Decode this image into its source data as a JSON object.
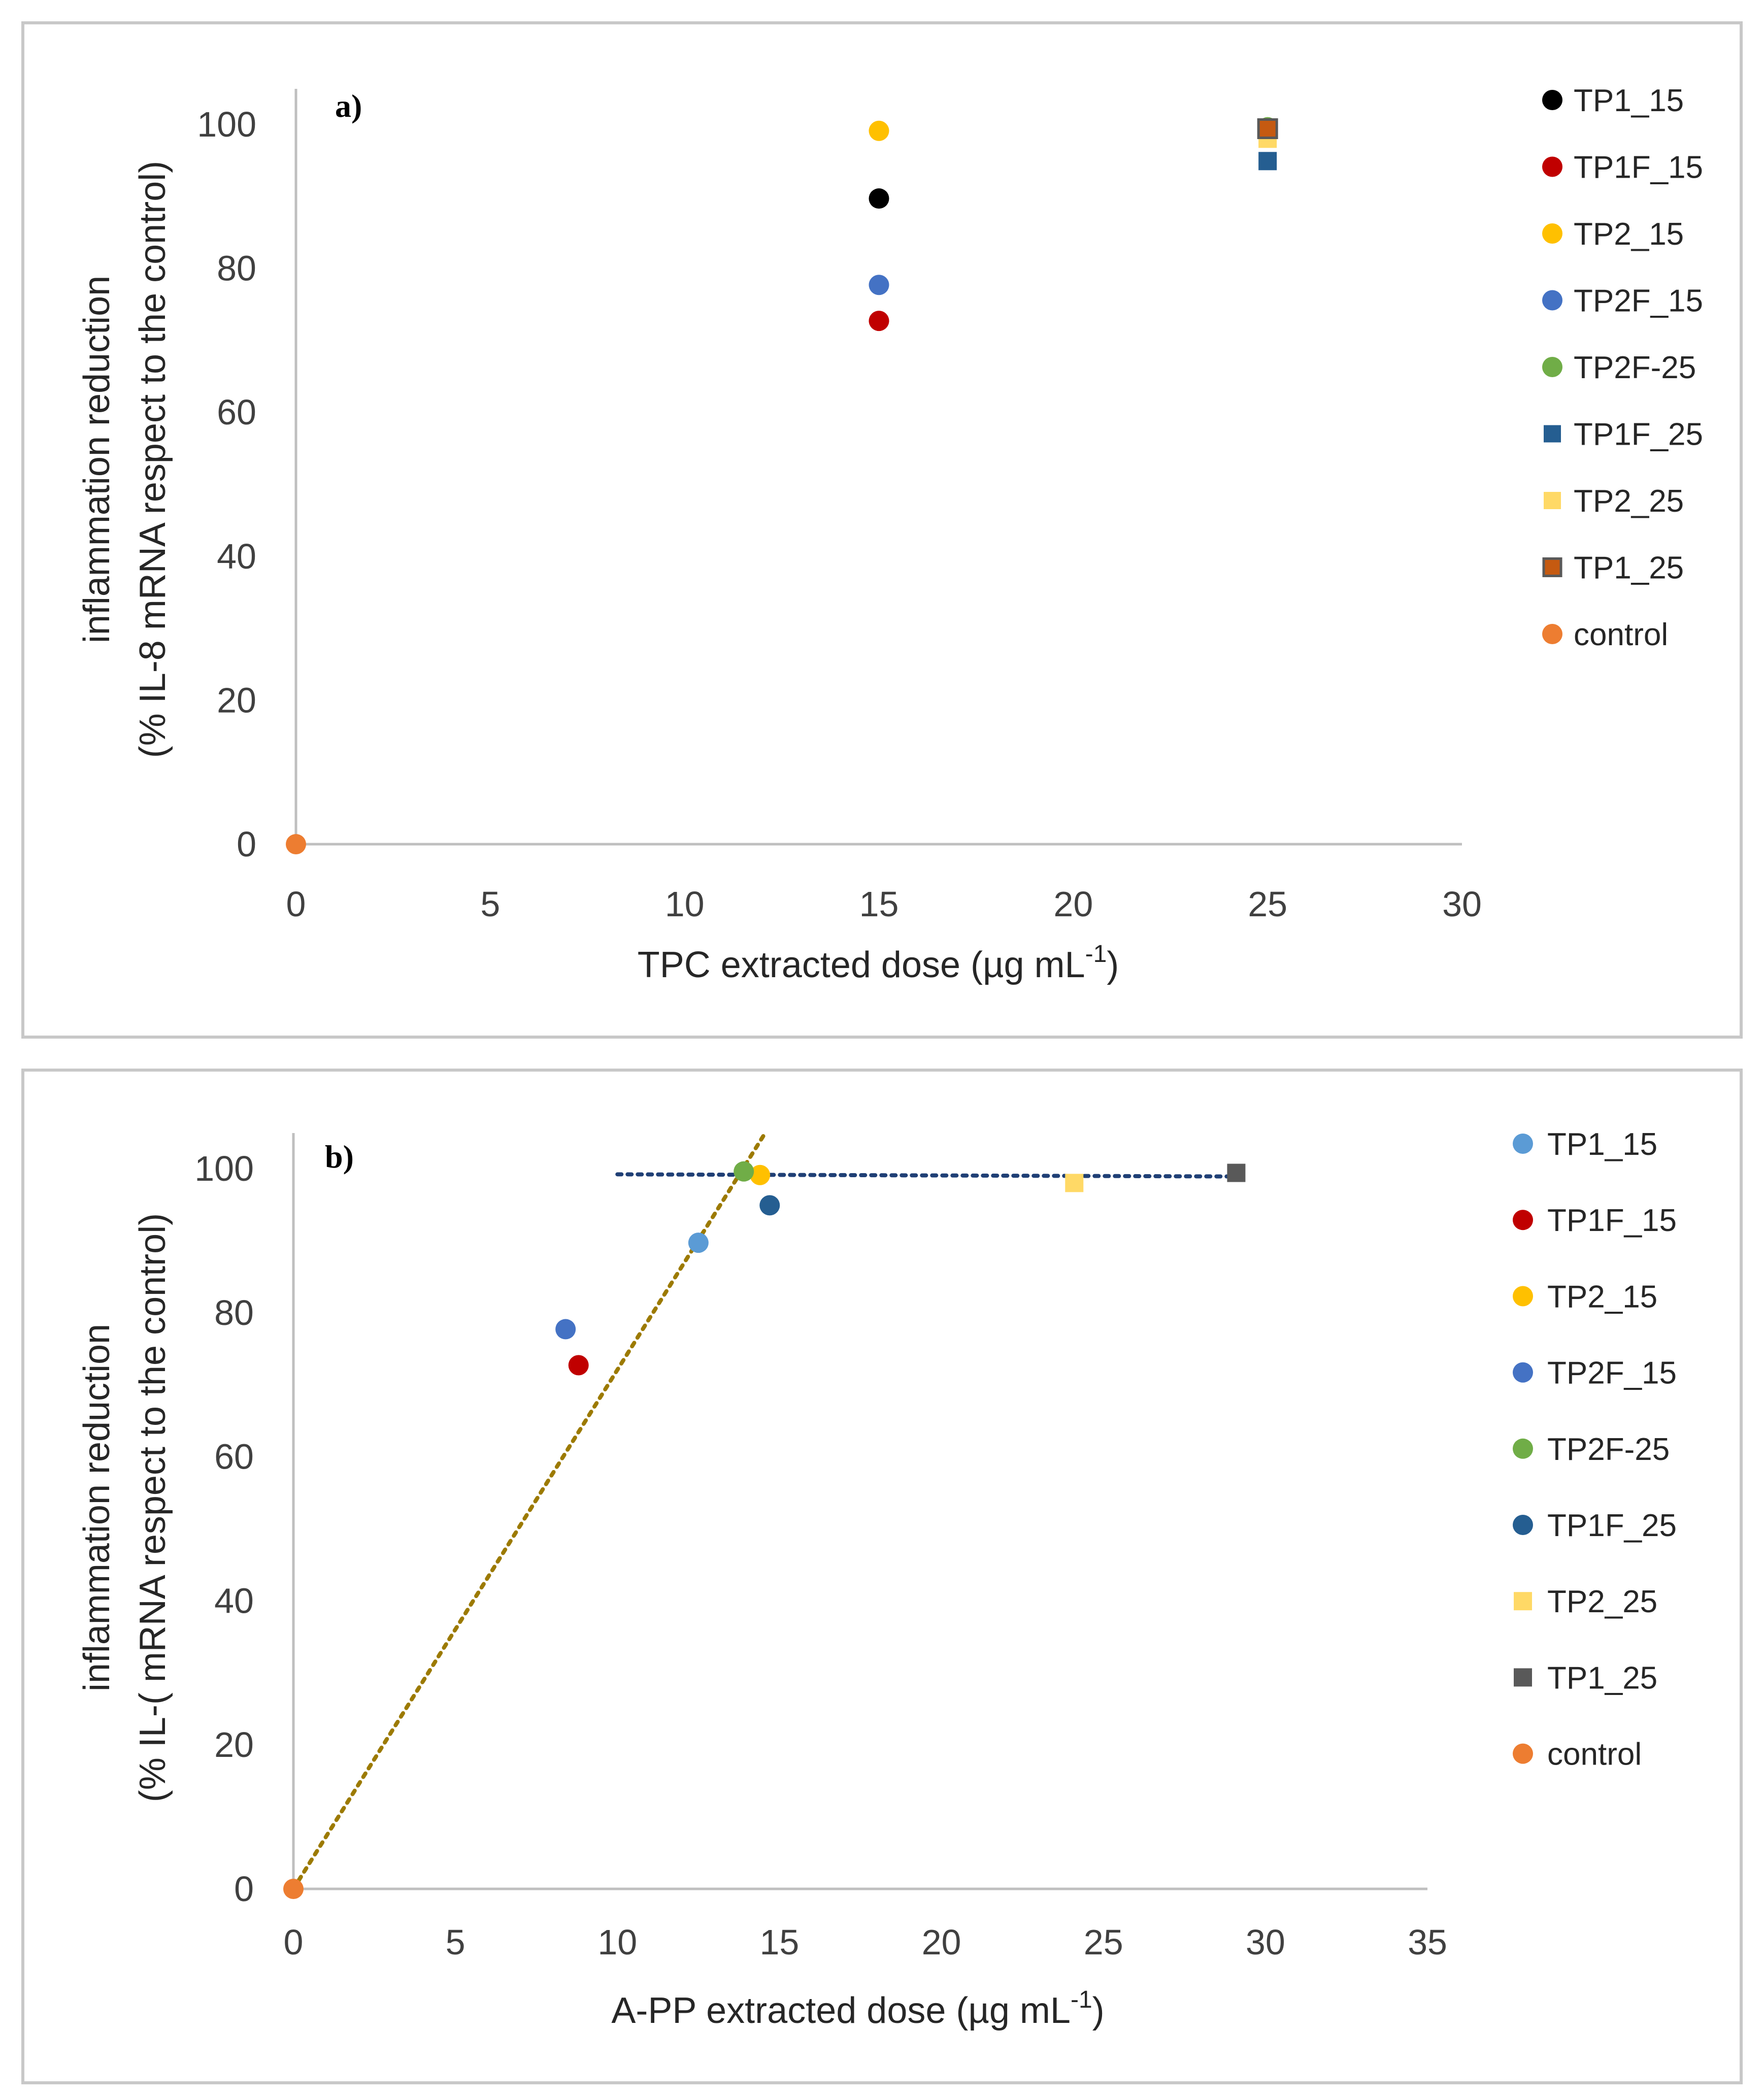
{
  "chart_data": [
    {
      "type": "scatter",
      "panel_label": "a)",
      "xlabel_main": "TPC extracted dose (µg mL",
      "xlabel_sup": "-1",
      "xlabel_end": ")",
      "ylabel_line1": "inflammation reduction",
      "ylabel_line2": "(% IL-8 mRNA respect to the control)",
      "xlim": [
        0,
        30
      ],
      "ylim": [
        0,
        100
      ],
      "xticks": [
        "0",
        "5",
        "10",
        "15",
        "20",
        "25",
        "30"
      ],
      "yticks": [
        "0",
        "20",
        "40",
        "60",
        "80",
        "100"
      ],
      "legend_position": "right",
      "series": [
        {
          "name": "TP1_15",
          "marker": "circle",
          "color": "#000000",
          "x": 15,
          "y": 89.7
        },
        {
          "name": "TP1F_15",
          "marker": "circle",
          "color": "#c00000",
          "x": 15,
          "y": 72.7
        },
        {
          "name": "TP2_15",
          "marker": "circle",
          "color": "#ffc000",
          "x": 15,
          "y": 99.1
        },
        {
          "name": "TP2F_15",
          "marker": "circle",
          "color": "#4472c4",
          "x": 15,
          "y": 77.7
        },
        {
          "name": "TP2F-25",
          "marker": "circle",
          "color": "#70ad47",
          "x": 25,
          "y": 99.6
        },
        {
          "name": "TP1F_25",
          "marker": "square",
          "color": "#255e91",
          "x": 25,
          "y": 94.9
        },
        {
          "name": "TP2_25",
          "marker": "square",
          "color": "#ffd966",
          "x": 25,
          "y": 98.0
        },
        {
          "name": "TP1_25",
          "marker": "square",
          "color": "#c55a11",
          "edge": "#595959",
          "x": 25,
          "y": 99.4
        },
        {
          "name": "control",
          "marker": "circle",
          "color": "#ed7d31",
          "x": 0,
          "y": 0
        }
      ]
    },
    {
      "type": "scatter",
      "panel_label": "b)",
      "xlabel_main": "A-PP extracted dose (µg mL",
      "xlabel_sup": "-1",
      "xlabel_end": ")",
      "ylabel_line1": "inflammation reduction",
      "ylabel_line2": "(% IL-( mRNA respect to the control)",
      "xlim": [
        0,
        35
      ],
      "ylim": [
        0,
        100
      ],
      "xticks": [
        "0",
        "5",
        "10",
        "15",
        "20",
        "25",
        "30",
        "35"
      ],
      "yticks": [
        "0",
        "20",
        "40",
        "60",
        "80",
        "100"
      ],
      "legend_position": "right",
      "series": [
        {
          "name": "TP1_15",
          "marker": "circle",
          "color": "#5b9bd5",
          "x": 12.5,
          "y": 89.7
        },
        {
          "name": "TP1F_15",
          "marker": "circle",
          "color": "#c00000",
          "x": 8.8,
          "y": 72.7
        },
        {
          "name": "TP2_15",
          "marker": "circle",
          "color": "#ffc000",
          "x": 14.4,
          "y": 99.1
        },
        {
          "name": "TP2F_15",
          "marker": "circle",
          "color": "#4472c4",
          "x": 8.4,
          "y": 77.7
        },
        {
          "name": "TP2F-25",
          "marker": "circle",
          "color": "#70ad47",
          "x": 13.9,
          "y": 99.6
        },
        {
          "name": "TP1F_25",
          "marker": "circle",
          "color": "#255e91",
          "x": 14.7,
          "y": 94.9
        },
        {
          "name": "TP2_25",
          "marker": "square",
          "color": "#ffd966",
          "x": 24.1,
          "y": 98.0
        },
        {
          "name": "TP1_25",
          "marker": "square",
          "color": "#595959",
          "x": 29.1,
          "y": 99.4
        },
        {
          "name": "control",
          "marker": "circle",
          "color": "#ed7d31",
          "x": 0,
          "y": 0
        }
      ],
      "trendlines": [
        {
          "style": "dotted",
          "color": "#9c7a00",
          "x": [
            0,
            14.5
          ],
          "y": [
            0,
            104.5
          ]
        },
        {
          "style": "dotted",
          "color": "#1f3f75",
          "x": [
            10,
            29.1
          ],
          "y": [
            99.2,
            98.9
          ]
        }
      ]
    }
  ]
}
